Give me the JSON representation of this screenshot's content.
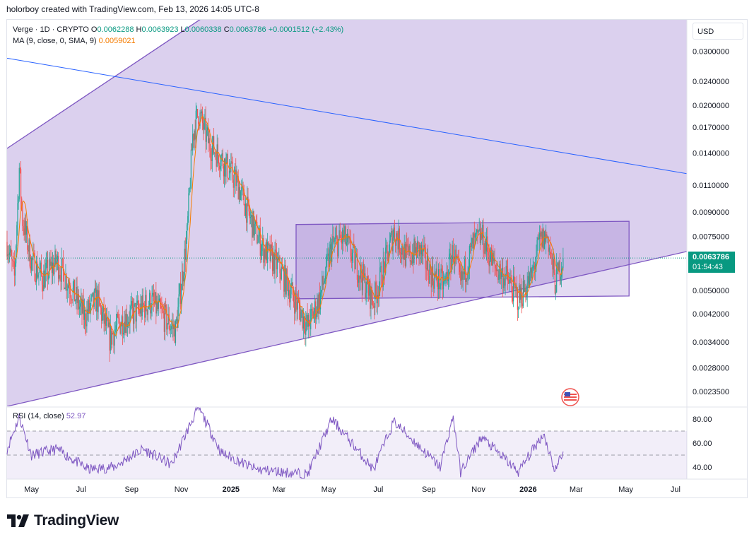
{
  "caption": "holorboy created with TradingView.com, Feb 13, 2026 14:05 UTC-8",
  "legend": {
    "symbol": "Verge · 1D · CRYPTO",
    "o_label": "O",
    "o_value": "0.0062288",
    "h_label": "H",
    "h_value": "0.0063923",
    "l_label": "L",
    "l_value": "0.0060338",
    "c_label": "C",
    "c_value": "0.0063786",
    "change": "+0.0001512 (+2.43%)",
    "ma_label": "MA (9, close, 0, SMA, 9)",
    "ma_value": "0.0059021"
  },
  "rsi_legend": {
    "label": "RSI (14, close)",
    "value": "52.97"
  },
  "currency": "USD",
  "last_price": {
    "price": "0.0063786",
    "countdown": "01:54:43"
  },
  "brand": "TradingView",
  "colors": {
    "up": "#089981",
    "ma": "#f57c00",
    "channel": "#7e57c2",
    "trendline": "#2962ff",
    "rsi": "#7e57c2",
    "candle_up": "#26a69a",
    "candle_down": "#ef5350"
  },
  "chart_data": [
    {
      "type": "candlestick",
      "title": "Verge · 1D · CRYPTO",
      "scale": "log",
      "x_range": [
        "2024-04-01",
        "2026-07-15"
      ],
      "ylim": [
        0.0021,
        0.038
      ],
      "y_ticks": [
        {
          "value": 0.03,
          "label": "0.0300000"
        },
        {
          "value": 0.024,
          "label": "0.0240000"
        },
        {
          "value": 0.02,
          "label": "0.0200000"
        },
        {
          "value": 0.017,
          "label": "0.0170000"
        },
        {
          "value": 0.014,
          "label": "0.0140000"
        },
        {
          "value": 0.011,
          "label": "0.0110000"
        },
        {
          "value": 0.009,
          "label": "0.0090000"
        },
        {
          "value": 0.0075,
          "label": "0.0075000"
        },
        {
          "value": 0.005,
          "label": "0.0050000"
        },
        {
          "value": 0.0042,
          "label": "0.0042000"
        },
        {
          "value": 0.0034,
          "label": "0.0034000"
        },
        {
          "value": 0.0028,
          "label": "0.0028000"
        },
        {
          "value": 0.00235,
          "label": "0.0023500"
        }
      ],
      "x_ticks": [
        {
          "date": "2024-05-01",
          "label": "May"
        },
        {
          "date": "2024-07-01",
          "label": "Jul"
        },
        {
          "date": "2024-09-01",
          "label": "Sep"
        },
        {
          "date": "2024-11-01",
          "label": "Nov"
        },
        {
          "date": "2025-01-01",
          "label": "2025",
          "bold": true
        },
        {
          "date": "2025-03-01",
          "label": "Mar"
        },
        {
          "date": "2025-05-01",
          "label": "May"
        },
        {
          "date": "2025-07-01",
          "label": "Jul"
        },
        {
          "date": "2025-09-01",
          "label": "Sep"
        },
        {
          "date": "2025-11-01",
          "label": "Nov"
        },
        {
          "date": "2026-01-01",
          "label": "2026",
          "bold": true
        },
        {
          "date": "2026-03-01",
          "label": "Mar"
        },
        {
          "date": "2026-05-01",
          "label": "May"
        },
        {
          "date": "2026-07-01",
          "label": "Jul"
        }
      ],
      "price_path": [
        [
          "2024-04-01",
          0.0072
        ],
        [
          "2024-04-10",
          0.0055
        ],
        [
          "2024-04-16",
          0.0125
        ],
        [
          "2024-04-20",
          0.0085
        ],
        [
          "2024-05-01",
          0.0062
        ],
        [
          "2024-05-15",
          0.0055
        ],
        [
          "2024-06-01",
          0.0062
        ],
        [
          "2024-06-20",
          0.005
        ],
        [
          "2024-07-05",
          0.0041
        ],
        [
          "2024-07-20",
          0.0047
        ],
        [
          "2024-08-05",
          0.0035
        ],
        [
          "2024-08-20",
          0.004
        ],
        [
          "2024-09-10",
          0.0043
        ],
        [
          "2024-09-25",
          0.0046
        ],
        [
          "2024-10-10",
          0.0041
        ],
        [
          "2024-10-25",
          0.0037
        ],
        [
          "2024-11-08",
          0.0075
        ],
        [
          "2024-11-15",
          0.016
        ],
        [
          "2024-11-22",
          0.019
        ],
        [
          "2024-12-05",
          0.015
        ],
        [
          "2024-12-20",
          0.0135
        ],
        [
          "2025-01-10",
          0.011
        ],
        [
          "2025-01-25",
          0.0085
        ],
        [
          "2025-02-10",
          0.0068
        ],
        [
          "2025-02-28",
          0.006
        ],
        [
          "2025-03-15",
          0.005
        ],
        [
          "2025-04-05",
          0.0038
        ],
        [
          "2025-04-20",
          0.0047
        ],
        [
          "2025-05-05",
          0.007
        ],
        [
          "2025-05-20",
          0.0074
        ],
        [
          "2025-06-05",
          0.006
        ],
        [
          "2025-06-25",
          0.0046
        ],
        [
          "2025-07-10",
          0.0062
        ],
        [
          "2025-07-20",
          0.0078
        ],
        [
          "2025-08-05",
          0.0064
        ],
        [
          "2025-08-20",
          0.0068
        ],
        [
          "2025-09-05",
          0.0056
        ],
        [
          "2025-09-20",
          0.0052
        ],
        [
          "2025-10-01",
          0.0067
        ],
        [
          "2025-10-10",
          0.0052
        ],
        [
          "2025-10-25",
          0.007
        ],
        [
          "2025-11-05",
          0.0075
        ],
        [
          "2025-11-20",
          0.006
        ],
        [
          "2025-12-05",
          0.0055
        ],
        [
          "2025-12-20",
          0.0047
        ],
        [
          "2026-01-05",
          0.0055
        ],
        [
          "2026-01-15",
          0.0072
        ],
        [
          "2026-01-25",
          0.0075
        ],
        [
          "2026-02-03",
          0.0053
        ],
        [
          "2026-02-13",
          0.0063786
        ]
      ],
      "ma": {
        "name": "MA (9, close, 0, SMA, 9)",
        "last": 0.0059021
      },
      "drawings": {
        "channel_upper": [
          [
            "2024-04-01",
            0.0145
          ],
          [
            "2025-01-30",
            0.05
          ]
        ],
        "channel_lower": [
          [
            "2024-04-01",
            0.0021
          ],
          [
            "2026-07-15",
            0.0067
          ]
        ],
        "trendline": [
          [
            "2024-04-01",
            0.0285
          ],
          [
            "2026-07-15",
            0.012
          ]
        ],
        "range_box": {
          "from": "2025-03-22",
          "to": "2026-05-05",
          "upper": [
            0.0082,
            0.0084
          ],
          "lower": [
            0.0047,
            0.0048
          ]
        }
      }
    },
    {
      "type": "line",
      "title": "RSI (14, close)",
      "ylim": [
        30,
        90
      ],
      "y_ticks": [
        80,
        60,
        40
      ],
      "bands": [
        30,
        50,
        70
      ],
      "last": 52.97,
      "series": [
        {
          "name": "RSI (14, close)",
          "values_path": [
            [
              "2024-04-01",
              55
            ],
            [
              "2024-04-16",
              82
            ],
            [
              "2024-05-01",
              50
            ],
            [
              "2024-06-01",
              55
            ],
            [
              "2024-07-10",
              38
            ],
            [
              "2024-08-10",
              40
            ],
            [
              "2024-09-15",
              55
            ],
            [
              "2024-10-20",
              42
            ],
            [
              "2024-11-15",
              80
            ],
            [
              "2024-11-22",
              90
            ],
            [
              "2024-12-20",
              52
            ],
            [
              "2025-02-01",
              38
            ],
            [
              "2025-04-05",
              34
            ],
            [
              "2025-05-05",
              80
            ],
            [
              "2025-06-25",
              38
            ],
            [
              "2025-07-20",
              78
            ],
            [
              "2025-09-15",
              40
            ],
            [
              "2025-10-01",
              82
            ],
            [
              "2025-10-10",
              36
            ],
            [
              "2025-11-05",
              65
            ],
            [
              "2025-12-20",
              36
            ],
            [
              "2026-01-20",
              68
            ],
            [
              "2026-02-03",
              37
            ],
            [
              "2026-02-13",
              52.97
            ]
          ]
        }
      ]
    }
  ]
}
